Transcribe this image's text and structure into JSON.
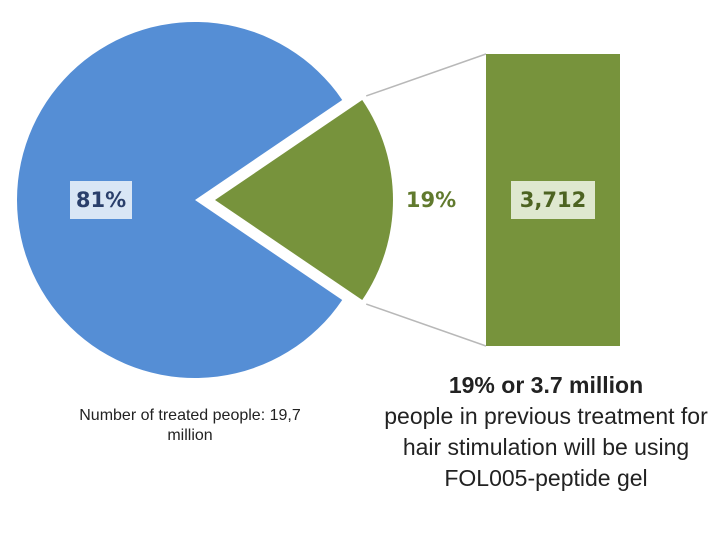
{
  "chart_data": [
    {
      "type": "pie",
      "slices": [
        {
          "label": "81%",
          "value": 81,
          "color": "#558ed5"
        },
        {
          "label": "19%",
          "value": 19,
          "color": "#77933c",
          "exploded": true
        }
      ]
    },
    {
      "type": "bar",
      "values": [
        3712
      ],
      "value_label": "3,712",
      "color": "#77933c"
    }
  ],
  "captions": {
    "left": "Number of treated people: 19,7 million",
    "right_highlight": "19% or 3.7 million",
    "right_body": "people in previous treatment for hair stimulation will be using FOL005-peptide gel"
  }
}
